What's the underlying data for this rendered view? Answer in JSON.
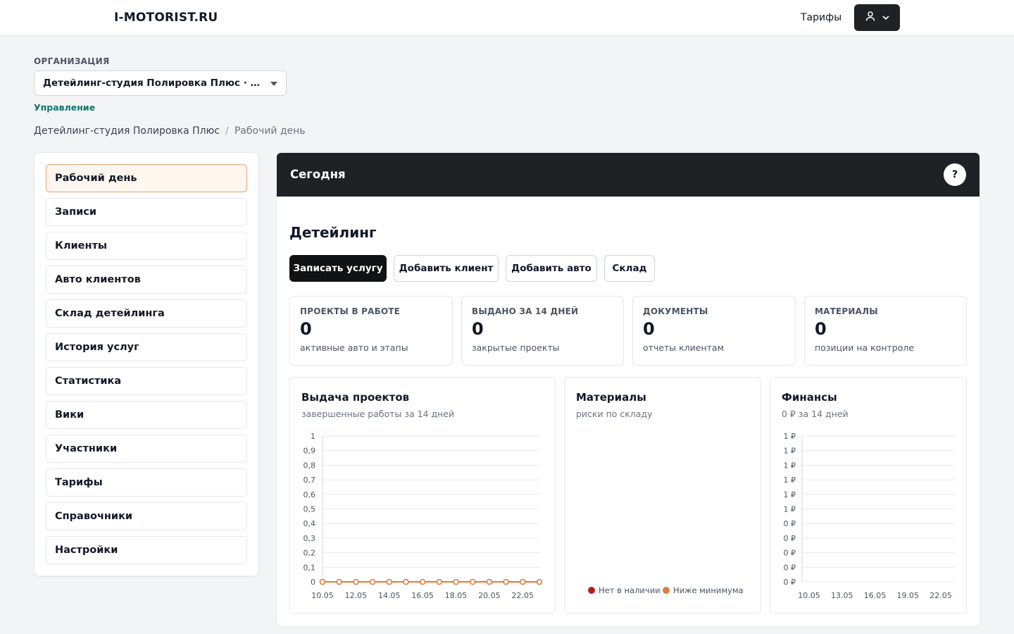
{
  "header": {
    "logo": "I-MOTORIST.RU",
    "tariffs_link": "Тарифы",
    "user_menu_icon": "user-icon"
  },
  "org": {
    "label": "ОРГАНИЗАЦИЯ",
    "selected": "Детейлинг-студия Полировка Плюс · Детейлинг",
    "manage_link": "Управление"
  },
  "breadcrumb": {
    "items": [
      "Детейлинг-студия Полировка Плюс",
      "Рабочий день"
    ],
    "separator": "/"
  },
  "sidebar": {
    "items": [
      {
        "label": "Рабочий день",
        "active": true
      },
      {
        "label": "Записи"
      },
      {
        "label": "Клиенты"
      },
      {
        "label": "Авто клиентов"
      },
      {
        "label": "Склад детейлинга"
      },
      {
        "label": "История услуг"
      },
      {
        "label": "Статистика"
      },
      {
        "label": "Вики"
      },
      {
        "label": "Участники"
      },
      {
        "label": "Тарифы"
      },
      {
        "label": "Справочники"
      },
      {
        "label": "Настройки"
      }
    ]
  },
  "main": {
    "header_title": "Сегодня",
    "help_label": "?",
    "section_title": "Детейлинг",
    "actions": [
      "Записать услугу",
      "Добавить клиент",
      "Добавить авто",
      "Склад"
    ],
    "stats": [
      {
        "label": "ПРОЕКТЫ В РАБОТЕ",
        "value": "0",
        "sub": "активные авто и этапы"
      },
      {
        "label": "ВЫДАНО ЗА 14 ДНЕЙ",
        "value": "0",
        "sub": "закрытые проекты"
      },
      {
        "label": "ДОКУМЕНТЫ",
        "value": "0",
        "sub": "отчеты клиентам"
      },
      {
        "label": "МАТЕРИАЛЫ",
        "value": "0",
        "sub": "позиции на контроле"
      }
    ],
    "cards": [
      {
        "title": "Выдача проектов",
        "subtitle": "завершенные работы за 14 дней"
      },
      {
        "title": "Материалы",
        "subtitle": "риски по складу"
      },
      {
        "title": "Финансы",
        "subtitle": "0 ₽ за 14 дней"
      }
    ]
  },
  "chart_data": [
    {
      "type": "line",
      "title": "Выдача проектов",
      "x": [
        "10.05",
        "11.05",
        "12.05",
        "13.05",
        "14.05",
        "15.05",
        "16.05",
        "17.05",
        "18.05",
        "19.05",
        "20.05",
        "21.05",
        "22.05",
        "23.05"
      ],
      "x_tick_labels": [
        "10.05",
        "12.05",
        "14.05",
        "16.05",
        "18.05",
        "20.05",
        "22.05"
      ],
      "y_tick_labels": [
        "1",
        "0,9",
        "0,8",
        "0,7",
        "0,6",
        "0,5",
        "0,4",
        "0,3",
        "0,2",
        "0,1",
        "0"
      ],
      "series": [
        {
          "values": [
            0,
            0,
            0,
            0,
            0,
            0,
            0,
            0,
            0,
            0,
            0,
            0,
            0,
            0
          ],
          "color": "#e07b3c"
        }
      ],
      "ylim": [
        0,
        1
      ],
      "grid": true
    },
    {
      "type": "pie",
      "title": "Материалы",
      "legend": [
        {
          "name": "Нет в наличии",
          "color": "#b91c1c"
        },
        {
          "name": "Ниже минимума",
          "color": "#e07b3c"
        }
      ],
      "values": [
        0,
        0
      ],
      "legend_position": "bottom"
    },
    {
      "type": "bar",
      "title": "Финансы",
      "x_tick_labels": [
        "10.05",
        "13.05",
        "16.05",
        "19.05",
        "22.05"
      ],
      "y_tick_labels": [
        "1 ₽",
        "1 ₽",
        "1 ₽",
        "1 ₽",
        "1 ₽",
        "1 ₽",
        "0 ₽",
        "0 ₽",
        "0 ₽",
        "0 ₽",
        "0 ₽"
      ],
      "values": [],
      "grid": true
    }
  ]
}
